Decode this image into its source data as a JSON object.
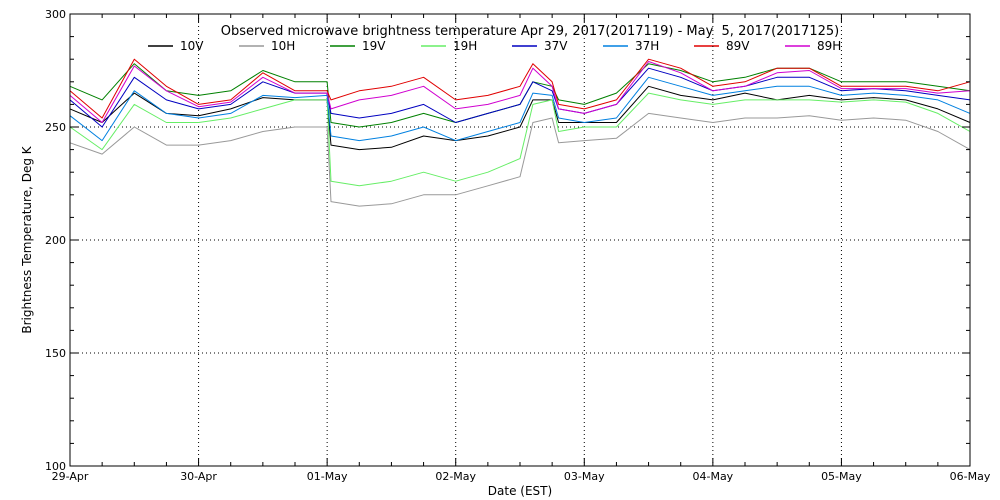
{
  "chart_data": {
    "type": "line",
    "title": "Observed microwave brightness temperature Apr 29, 2017(2017119) - May  5, 2017(2017125)",
    "xlabel": "Date (EST)",
    "ylabel": "Brightness Temperature, Deg K",
    "ylim": [
      100,
      300
    ],
    "yticks": [
      100,
      150,
      200,
      250,
      300
    ],
    "xlim": [
      0,
      7
    ],
    "xticks": [
      0,
      1,
      2,
      3,
      4,
      5,
      6,
      7
    ],
    "xtick_labels": [
      "29-Apr",
      "30-Apr",
      "01-May",
      "02-May",
      "03-May",
      "04-May",
      "05-May",
      "06-May"
    ],
    "grid": true,
    "legend_position": "top",
    "series": [
      {
        "name": "10V",
        "color": "#000000",
        "x": [
          0,
          0.25,
          0.5,
          0.75,
          1,
          1.25,
          1.5,
          1.75,
          2,
          2.03,
          2.25,
          2.5,
          2.75,
          3,
          3.25,
          3.5,
          3.6,
          3.75,
          3.8,
          4,
          4.25,
          4.5,
          4.75,
          5,
          5.25,
          5.5,
          5.75,
          6,
          6.25,
          6.5,
          6.75,
          7
        ],
        "y": [
          258,
          252,
          265,
          256,
          255,
          258,
          263,
          262,
          262,
          242,
          240,
          241,
          246,
          244,
          246,
          250,
          262,
          262,
          252,
          252,
          252,
          268,
          264,
          262,
          265,
          262,
          264,
          262,
          263,
          262,
          258,
          252
        ]
      },
      {
        "name": "10H",
        "color": "#999999",
        "x": [
          0,
          0.25,
          0.5,
          0.75,
          1,
          1.25,
          1.5,
          1.75,
          2,
          2.03,
          2.25,
          2.5,
          2.75,
          3,
          3.25,
          3.5,
          3.6,
          3.75,
          3.8,
          4,
          4.25,
          4.5,
          4.75,
          5,
          5.25,
          5.5,
          5.75,
          6,
          6.25,
          6.5,
          6.75,
          7
        ],
        "y": [
          243,
          238,
          250,
          242,
          242,
          244,
          248,
          250,
          250,
          217,
          215,
          216,
          220,
          220,
          224,
          228,
          252,
          254,
          243,
          244,
          245,
          256,
          254,
          252,
          254,
          254,
          255,
          253,
          254,
          253,
          248,
          240
        ]
      },
      {
        "name": "19V",
        "color": "#008000",
        "x": [
          0,
          0.25,
          0.5,
          0.75,
          1,
          1.25,
          1.5,
          1.75,
          2,
          2.03,
          2.25,
          2.5,
          2.75,
          3,
          3.25,
          3.5,
          3.6,
          3.75,
          3.8,
          4,
          4.25,
          4.5,
          4.75,
          5,
          5.25,
          5.5,
          5.75,
          6,
          6.25,
          6.5,
          6.75,
          7
        ],
        "y": [
          268,
          262,
          278,
          266,
          264,
          266,
          275,
          270,
          270,
          252,
          250,
          252,
          256,
          252,
          256,
          260,
          270,
          268,
          262,
          260,
          265,
          278,
          275,
          270,
          272,
          276,
          276,
          270,
          270,
          270,
          268,
          266
        ]
      },
      {
        "name": "19H",
        "color": "#66ee66",
        "x": [
          0,
          0.25,
          0.5,
          0.75,
          1,
          1.25,
          1.5,
          1.75,
          2,
          2.03,
          2.25,
          2.5,
          2.75,
          3,
          3.25,
          3.5,
          3.6,
          3.75,
          3.8,
          4,
          4.25,
          4.5,
          4.75,
          5,
          5.25,
          5.5,
          5.75,
          6,
          6.25,
          6.5,
          6.75,
          7
        ],
        "y": [
          250,
          240,
          260,
          252,
          252,
          254,
          258,
          262,
          262,
          226,
          224,
          226,
          230,
          226,
          230,
          236,
          260,
          262,
          248,
          250,
          250,
          265,
          262,
          260,
          262,
          262,
          262,
          261,
          262,
          261,
          256,
          248
        ]
      },
      {
        "name": "37V",
        "color": "#0000c0",
        "x": [
          0,
          0.25,
          0.5,
          0.75,
          1,
          1.25,
          1.5,
          1.75,
          2,
          2.03,
          2.25,
          2.5,
          2.75,
          3,
          3.25,
          3.5,
          3.6,
          3.75,
          3.8,
          4,
          4.25,
          4.5,
          4.75,
          5,
          5.25,
          5.5,
          5.75,
          6,
          6.25,
          6.5,
          6.75,
          7
        ],
        "y": [
          262,
          250,
          272,
          262,
          258,
          260,
          270,
          265,
          265,
          256,
          254,
          256,
          260,
          252,
          256,
          260,
          270,
          266,
          258,
          256,
          260,
          276,
          272,
          266,
          268,
          272,
          272,
          266,
          267,
          266,
          264,
          262
        ]
      },
      {
        "name": "37H",
        "color": "#0080e0",
        "x": [
          0,
          0.25,
          0.5,
          0.75,
          1,
          1.25,
          1.5,
          1.75,
          2,
          2.03,
          2.25,
          2.5,
          2.75,
          3,
          3.25,
          3.5,
          3.6,
          3.75,
          3.8,
          4,
          4.25,
          4.5,
          4.75,
          5,
          5.25,
          5.5,
          5.75,
          6,
          6.25,
          6.5,
          6.75,
          7
        ],
        "y": [
          255,
          244,
          266,
          256,
          254,
          256,
          264,
          263,
          264,
          246,
          244,
          246,
          250,
          244,
          248,
          252,
          265,
          264,
          254,
          252,
          254,
          272,
          268,
          264,
          266,
          268,
          268,
          264,
          265,
          264,
          262,
          256
        ]
      },
      {
        "name": "89V",
        "color": "#e00000",
        "x": [
          0,
          0.25,
          0.5,
          0.75,
          1,
          1.25,
          1.5,
          1.75,
          2,
          2.03,
          2.25,
          2.5,
          2.75,
          3,
          3.25,
          3.5,
          3.6,
          3.75,
          3.8,
          4,
          4.25,
          4.5,
          4.75,
          5,
          5.25,
          5.5,
          5.75,
          6,
          6.25,
          6.5,
          6.75,
          7
        ],
        "y": [
          266,
          254,
          280,
          268,
          260,
          262,
          274,
          266,
          266,
          262,
          266,
          268,
          272,
          262,
          264,
          268,
          278,
          270,
          260,
          258,
          262,
          280,
          276,
          268,
          270,
          276,
          276,
          268,
          268,
          268,
          266,
          270
        ]
      },
      {
        "name": "89H",
        "color": "#d000d0",
        "x": [
          0,
          0.25,
          0.5,
          0.75,
          1,
          1.25,
          1.5,
          1.75,
          2,
          2.03,
          2.25,
          2.5,
          2.75,
          3,
          3.25,
          3.5,
          3.6,
          3.75,
          3.8,
          4,
          4.25,
          4.5,
          4.75,
          5,
          5.25,
          5.5,
          5.75,
          6,
          6.25,
          6.5,
          6.75,
          7
        ],
        "y": [
          264,
          252,
          277,
          266,
          259,
          261,
          272,
          265,
          265,
          258,
          262,
          264,
          268,
          258,
          260,
          264,
          276,
          268,
          258,
          256,
          260,
          279,
          274,
          266,
          268,
          274,
          275,
          267,
          267,
          267,
          265,
          266
        ]
      }
    ]
  }
}
